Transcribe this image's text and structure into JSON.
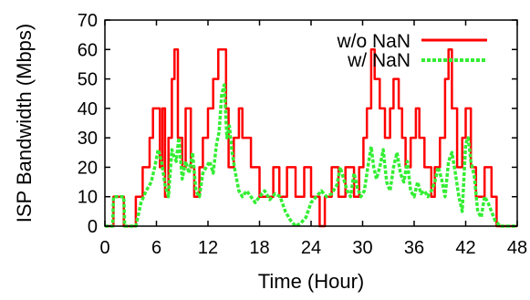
{
  "chart_data": {
    "type": "line",
    "xlabel": "Time (Hour)",
    "ylabel": "ISP Bandwidth (Mbps)",
    "xlim": [
      0,
      48
    ],
    "ylim": [
      0,
      70
    ],
    "xticks": [
      0,
      6,
      12,
      18,
      24,
      30,
      36,
      42,
      48
    ],
    "yticks": [
      0,
      10,
      20,
      30,
      40,
      50,
      60,
      70
    ],
    "xtick_labels": [
      "0",
      "6",
      "12",
      "18",
      "24",
      "30",
      "36",
      "42",
      "48"
    ],
    "ytick_labels": [
      "0",
      "10",
      "20",
      "30",
      "40",
      "50",
      "60",
      "70"
    ],
    "grid": false,
    "legend_position": "top-right",
    "series": [
      {
        "name": "w/o NaN",
        "color": "#ff0000",
        "style": "solid",
        "step": true,
        "points": [
          [
            0,
            0
          ],
          [
            1,
            0
          ],
          [
            1,
            10
          ],
          [
            2.2,
            10
          ],
          [
            2.2,
            0
          ],
          [
            3.6,
            0
          ],
          [
            3.6,
            10
          ],
          [
            4.4,
            10
          ],
          [
            4.4,
            20
          ],
          [
            5.2,
            20
          ],
          [
            5.2,
            30
          ],
          [
            5.6,
            30
          ],
          [
            5.6,
            40
          ],
          [
            6.4,
            40
          ],
          [
            6.4,
            20
          ],
          [
            6.7,
            20
          ],
          [
            6.7,
            40
          ],
          [
            7,
            40
          ],
          [
            7,
            10
          ],
          [
            7.4,
            10
          ],
          [
            7.4,
            30
          ],
          [
            7.8,
            30
          ],
          [
            7.8,
            50
          ],
          [
            8.1,
            50
          ],
          [
            8.1,
            60
          ],
          [
            8.5,
            60
          ],
          [
            8.5,
            30
          ],
          [
            9,
            30
          ],
          [
            9,
            20
          ],
          [
            9.4,
            20
          ],
          [
            9.4,
            40
          ],
          [
            10,
            40
          ],
          [
            10,
            20
          ],
          [
            10.4,
            20
          ],
          [
            10.4,
            10
          ],
          [
            11,
            10
          ],
          [
            11,
            20
          ],
          [
            11.4,
            20
          ],
          [
            11.4,
            30
          ],
          [
            12,
            30
          ],
          [
            12,
            40
          ],
          [
            12.6,
            40
          ],
          [
            12.6,
            50
          ],
          [
            13.2,
            50
          ],
          [
            13.2,
            60
          ],
          [
            14.1,
            60
          ],
          [
            14.1,
            40
          ],
          [
            14.4,
            40
          ],
          [
            14.4,
            20
          ],
          [
            15,
            20
          ],
          [
            15,
            30
          ],
          [
            15.6,
            30
          ],
          [
            15.6,
            40
          ],
          [
            16,
            40
          ],
          [
            16,
            30
          ],
          [
            17,
            30
          ],
          [
            17,
            20
          ],
          [
            18,
            20
          ],
          [
            18,
            10
          ],
          [
            19.6,
            10
          ],
          [
            19.6,
            20
          ],
          [
            20.3,
            20
          ],
          [
            20.3,
            10
          ],
          [
            21.2,
            10
          ],
          [
            21.2,
            20
          ],
          [
            22.2,
            20
          ],
          [
            22.2,
            10
          ],
          [
            23.2,
            10
          ],
          [
            23.2,
            20
          ],
          [
            24,
            20
          ],
          [
            24,
            10
          ],
          [
            25,
            10
          ],
          [
            25,
            0
          ],
          [
            25.6,
            0
          ],
          [
            25.6,
            10
          ],
          [
            26.4,
            10
          ],
          [
            26.4,
            20
          ],
          [
            27.2,
            20
          ],
          [
            27.2,
            10
          ],
          [
            28,
            10
          ],
          [
            28,
            20
          ],
          [
            29,
            20
          ],
          [
            29,
            10
          ],
          [
            29.6,
            10
          ],
          [
            29.6,
            20
          ],
          [
            30.1,
            20
          ],
          [
            30.1,
            30
          ],
          [
            30.5,
            30
          ],
          [
            30.5,
            40
          ],
          [
            31,
            40
          ],
          [
            31,
            60
          ],
          [
            31.4,
            60
          ],
          [
            31.4,
            50
          ],
          [
            32,
            50
          ],
          [
            32,
            40
          ],
          [
            32.6,
            40
          ],
          [
            32.6,
            30
          ],
          [
            33.2,
            30
          ],
          [
            33.2,
            40
          ],
          [
            33.6,
            40
          ],
          [
            33.6,
            50
          ],
          [
            34.2,
            50
          ],
          [
            34.2,
            40
          ],
          [
            34.6,
            40
          ],
          [
            34.6,
            30
          ],
          [
            35,
            30
          ],
          [
            35,
            20
          ],
          [
            35.6,
            20
          ],
          [
            35.6,
            30
          ],
          [
            36.2,
            30
          ],
          [
            36.2,
            40
          ],
          [
            36.6,
            40
          ],
          [
            36.6,
            30
          ],
          [
            37.2,
            30
          ],
          [
            37.2,
            20
          ],
          [
            38,
            20
          ],
          [
            38,
            10
          ],
          [
            38.4,
            10
          ],
          [
            38.4,
            20
          ],
          [
            39,
            20
          ],
          [
            39,
            30
          ],
          [
            39.6,
            30
          ],
          [
            39.6,
            50
          ],
          [
            40,
            50
          ],
          [
            40,
            60
          ],
          [
            40.4,
            60
          ],
          [
            40.4,
            40
          ],
          [
            41,
            40
          ],
          [
            41,
            20
          ],
          [
            41.6,
            20
          ],
          [
            41.6,
            30
          ],
          [
            42,
            30
          ],
          [
            42,
            40
          ],
          [
            42.6,
            40
          ],
          [
            42.6,
            20
          ],
          [
            43.2,
            20
          ],
          [
            43.2,
            10
          ],
          [
            44.2,
            10
          ],
          [
            44.2,
            20
          ],
          [
            45,
            20
          ],
          [
            45,
            10
          ],
          [
            45.6,
            10
          ],
          [
            45.6,
            0
          ],
          [
            48,
            0
          ]
        ]
      },
      {
        "name": "w/ NaN",
        "color": "#33ee33",
        "style": "dashed",
        "step": false,
        "points": [
          [
            0,
            0
          ],
          [
            0.9,
            0
          ],
          [
            1,
            10
          ],
          [
            2.2,
            10
          ],
          [
            2.3,
            0
          ],
          [
            3.6,
            0
          ],
          [
            4.2,
            8
          ],
          [
            4.8,
            12
          ],
          [
            5.4,
            15
          ],
          [
            5.8,
            20
          ],
          [
            6.2,
            26
          ],
          [
            6.6,
            22
          ],
          [
            7,
            14
          ],
          [
            7.4,
            10
          ],
          [
            7.8,
            26
          ],
          [
            8,
            24
          ],
          [
            8.3,
            22
          ],
          [
            8.6,
            30
          ],
          [
            9,
            16
          ],
          [
            9.4,
            22
          ],
          [
            9.8,
            18
          ],
          [
            10.2,
            25
          ],
          [
            10.6,
            12
          ],
          [
            11,
            10
          ],
          [
            11.4,
            18
          ],
          [
            11.8,
            20
          ],
          [
            12.2,
            22
          ],
          [
            12.6,
            18
          ],
          [
            13,
            28
          ],
          [
            13.3,
            32
          ],
          [
            13.6,
            45
          ],
          [
            13.9,
            48
          ],
          [
            14.2,
            30
          ],
          [
            14.5,
            34
          ],
          [
            14.8,
            25
          ],
          [
            15.2,
            18
          ],
          [
            15.6,
            12
          ],
          [
            16,
            10
          ],
          [
            16.5,
            12
          ],
          [
            17,
            10
          ],
          [
            17.5,
            8
          ],
          [
            18,
            10
          ],
          [
            18.6,
            12
          ],
          [
            19.2,
            9
          ],
          [
            19.8,
            11
          ],
          [
            20.4,
            10
          ],
          [
            21,
            5
          ],
          [
            21.6,
            2
          ],
          [
            22.2,
            0
          ],
          [
            22.8,
            1
          ],
          [
            23.4,
            3
          ],
          [
            24,
            8
          ],
          [
            24.6,
            10
          ],
          [
            25.2,
            12
          ],
          [
            25.8,
            10
          ],
          [
            26.4,
            11
          ],
          [
            27,
            14
          ],
          [
            27.4,
            20
          ],
          [
            27.8,
            16
          ],
          [
            28.2,
            12
          ],
          [
            28.6,
            10
          ],
          [
            29,
            18
          ],
          [
            29.4,
            13
          ],
          [
            29.8,
            10
          ],
          [
            30.2,
            12
          ],
          [
            30.6,
            20
          ],
          [
            31,
            27
          ],
          [
            31.3,
            20
          ],
          [
            31.6,
            16
          ],
          [
            32,
            20
          ],
          [
            32.4,
            26
          ],
          [
            32.8,
            15
          ],
          [
            33.2,
            12
          ],
          [
            33.6,
            20
          ],
          [
            34,
            25
          ],
          [
            34.4,
            18
          ],
          [
            34.8,
            15
          ],
          [
            35.2,
            22
          ],
          [
            35.6,
            12
          ],
          [
            36,
            10
          ],
          [
            36.4,
            15
          ],
          [
            36.8,
            11
          ],
          [
            37.2,
            12
          ],
          [
            37.6,
            10
          ],
          [
            38,
            12
          ],
          [
            38.4,
            15
          ],
          [
            38.8,
            20
          ],
          [
            39.2,
            16
          ],
          [
            39.6,
            10
          ],
          [
            40,
            22
          ],
          [
            40.4,
            25
          ],
          [
            40.8,
            18
          ],
          [
            41.2,
            10
          ],
          [
            41.6,
            5
          ],
          [
            42,
            28
          ],
          [
            42.3,
            30
          ],
          [
            42.6,
            22
          ],
          [
            43,
            17
          ],
          [
            43.4,
            5
          ],
          [
            43.8,
            3
          ],
          [
            44.2,
            10
          ],
          [
            44.6,
            8
          ],
          [
            45,
            5
          ],
          [
            45.4,
            2
          ],
          [
            46,
            0
          ],
          [
            47,
            0
          ],
          [
            48,
            0
          ]
        ]
      }
    ]
  }
}
